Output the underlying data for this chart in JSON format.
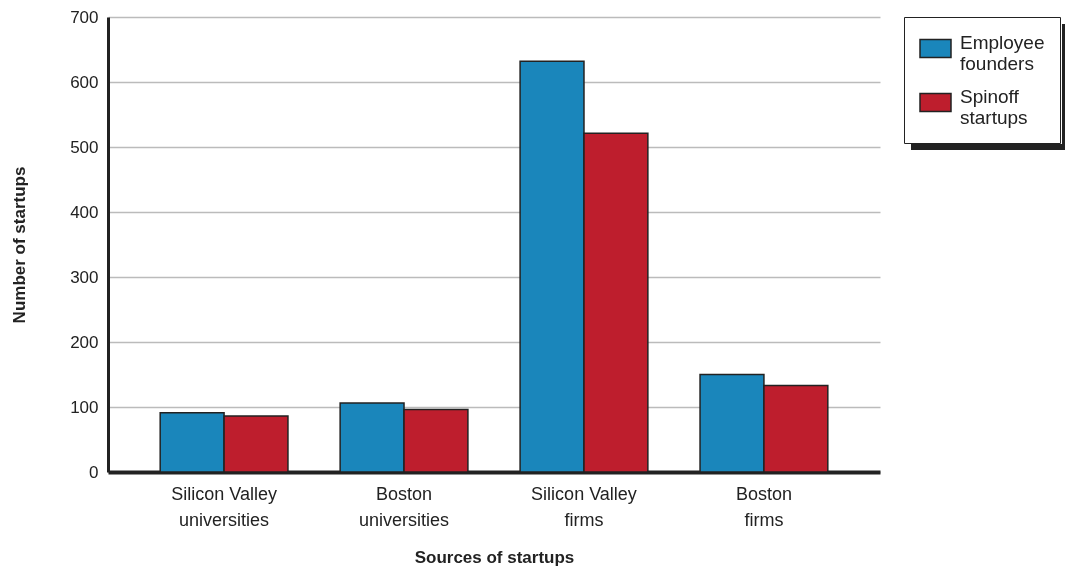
{
  "chart_data": {
    "type": "bar",
    "xlabel": "Sources of startups",
    "ylabel": "Number of startups",
    "categories": [
      "Silicon Valley universities",
      "Boston universities",
      "Silicon Valley firms",
      "Boston firms"
    ],
    "series": [
      {
        "name": "Employee founders",
        "color": "#1a86bb",
        "values": [
          91,
          106,
          632,
          150
        ]
      },
      {
        "name": "Spinoff startups",
        "color": "#be1e2d",
        "values": [
          86,
          96,
          521,
          133
        ]
      }
    ],
    "ylim": [
      0,
      700
    ],
    "yticks": [
      0,
      100,
      200,
      300,
      400,
      500,
      600,
      700
    ],
    "grid": "y",
    "legend": "top right"
  }
}
